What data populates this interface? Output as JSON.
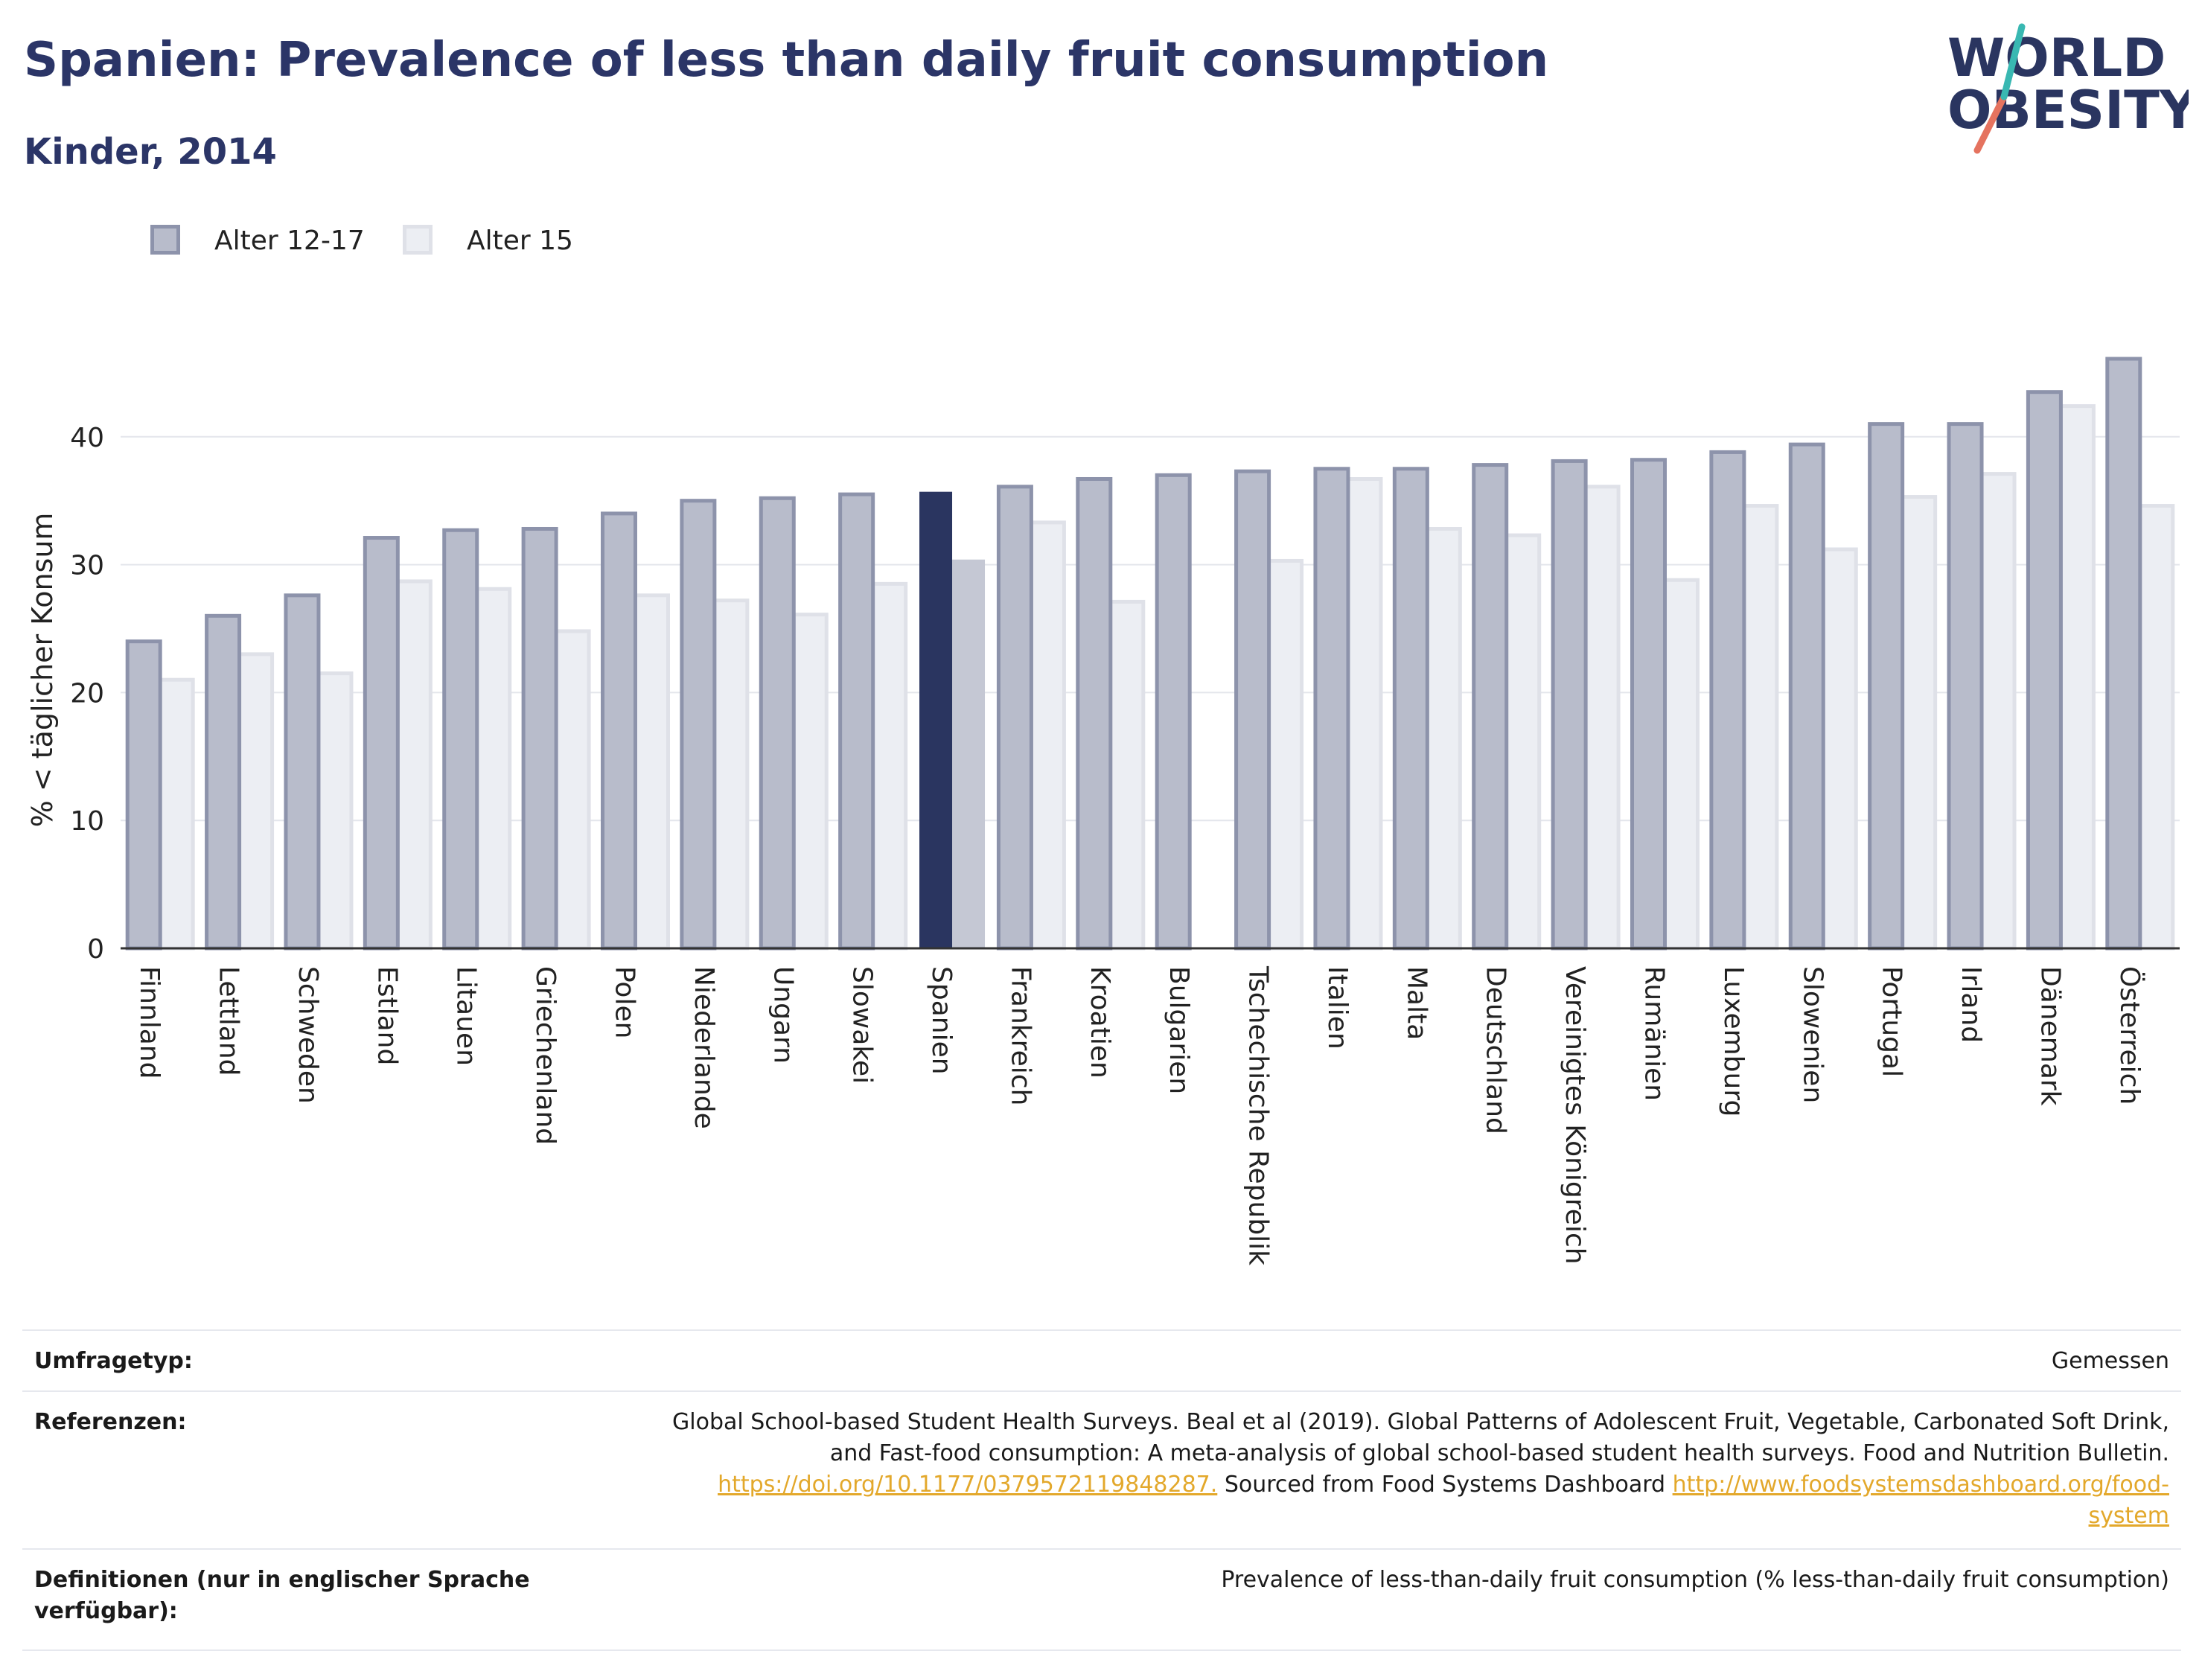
{
  "title": "Spanien: Prevalence of less than daily fruit consumption",
  "subtitle": "Kinder, 2014",
  "logo": {
    "line1": "WORLD",
    "line2": "OBESITY"
  },
  "colors": {
    "series1_fill": "#b8bccb",
    "series1_stroke": "#8d93ab",
    "series2_fill": "#eceef3",
    "series2_stroke": "#dfe1e8",
    "highlight1": "#2a3560",
    "highlight2": "#c5c8d4",
    "grid": "#e4e6ec",
    "axis": "#333333",
    "link": "#e3a82b"
  },
  "legend": [
    {
      "label": "Alter 12-17",
      "swatch": "series1"
    },
    {
      "label": "Alter 15",
      "swatch": "series2"
    }
  ],
  "chart_data": {
    "type": "bar",
    "title": "Spanien: Prevalence of less than daily fruit consumption",
    "subtitle": "Kinder, 2014",
    "ylabel": "% < täglicher Konsum",
    "xlabel": "",
    "ylim": [
      0,
      48
    ],
    "yticks": [
      0,
      10,
      20,
      30,
      40
    ],
    "grid": true,
    "legend_position": "top-left",
    "highlight": "Spanien",
    "categories": [
      "Finnland",
      "Lettland",
      "Schweden",
      "Estland",
      "Litauen",
      "Griechenland",
      "Polen",
      "Niederlande",
      "Ungarn",
      "Slowakei",
      "Spanien",
      "Frankreich",
      "Kroatien",
      "Bulgarien",
      "Tschechische Republik",
      "Italien",
      "Malta",
      "Deutschland",
      "Vereinigtes Königreich",
      "Rumänien",
      "Luxemburg",
      "Slowenien",
      "Portugal",
      "Irland",
      "Dänemark",
      "Österreich"
    ],
    "series": [
      {
        "name": "Alter 12-17",
        "values": [
          24.0,
          26.0,
          27.6,
          32.1,
          32.7,
          32.8,
          34.0,
          35.0,
          35.2,
          35.5,
          35.7,
          36.1,
          36.7,
          37.0,
          37.3,
          37.5,
          37.5,
          37.8,
          38.1,
          38.2,
          38.8,
          39.4,
          41.0,
          41.0,
          43.5,
          46.1
        ]
      },
      {
        "name": "Alter 15",
        "values": [
          21.0,
          23.0,
          21.5,
          28.7,
          28.1,
          24.8,
          27.6,
          27.2,
          26.1,
          28.5,
          30.4,
          33.3,
          27.1,
          null,
          30.3,
          36.7,
          32.8,
          32.3,
          36.1,
          28.8,
          34.6,
          31.2,
          35.3,
          37.1,
          42.4,
          34.6
        ]
      }
    ]
  },
  "meta": {
    "survey_label": "Umfragetyp:",
    "survey_value": "Gemessen",
    "references_label": "Referenzen:",
    "references_line1": "Global School-based Student Health Surveys. Beal et al (2019). Global Patterns of Adolescent Fruit, Vegetable, Carbonated Soft Drink,",
    "references_line2": "and Fast-food consumption: A meta-analysis of global school-based student health surveys. Food and Nutrition Bulletin.",
    "references_doi": "https://doi.org/10.1177/0379572119848287.",
    "references_sourced": " Sourced from Food Systems Dashboard ",
    "references_url_part1": "http://www.foodsystemsdashboard.org/food-",
    "references_url_part2": "system",
    "definitions_label_line1": "Definitionen (nur in englischer Sprache",
    "definitions_label_line2": "verfügbar):",
    "definitions_value": "Prevalence of less-than-daily fruit consumption (% less-than-daily fruit consumption)"
  }
}
